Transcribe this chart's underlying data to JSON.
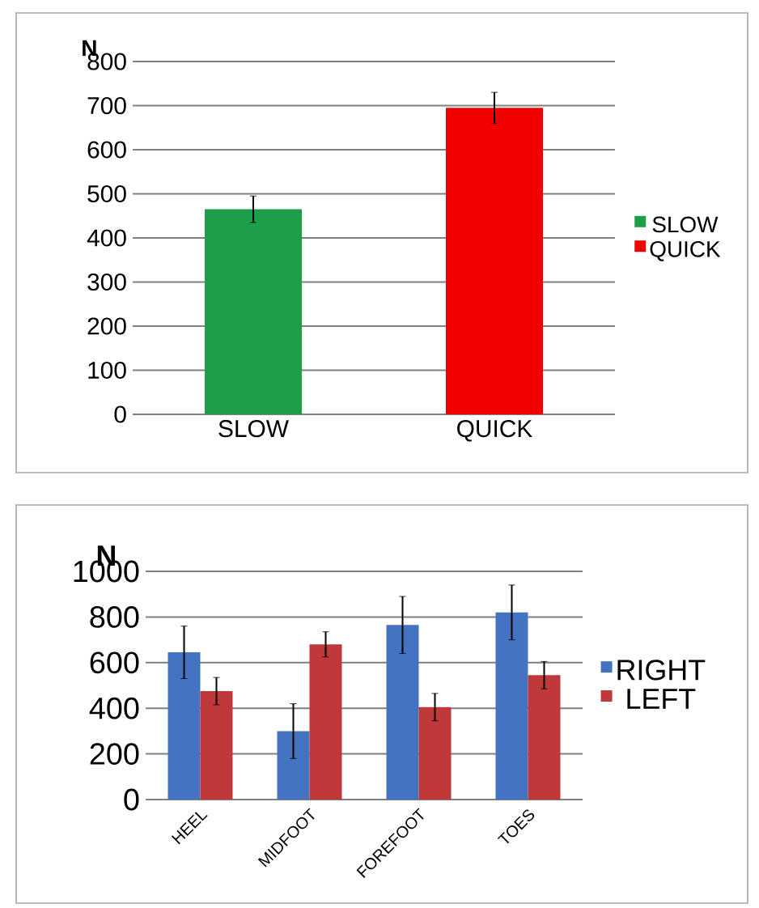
{
  "chart_data": [
    {
      "type": "bar",
      "ylabel": "N",
      "categories": [
        "SLOW",
        "QUICK"
      ],
      "series": [
        {
          "name": "SLOW",
          "color": "#1e9e48",
          "values": [
            465,
            null
          ],
          "errors": [
            30,
            null
          ]
        },
        {
          "name": "QUICK",
          "color": "#f20000",
          "values": [
            null,
            695
          ],
          "errors": [
            null,
            35
          ]
        }
      ],
      "ylim": [
        0,
        800
      ],
      "yticks": [
        0,
        100,
        200,
        300,
        400,
        500,
        600,
        700,
        800
      ],
      "grid": "y",
      "legend": "right"
    },
    {
      "type": "bar",
      "ylabel": "N",
      "categories": [
        "HEEL",
        "MIDFOOT",
        "FOREFOOT",
        "TOES"
      ],
      "series": [
        {
          "name": "RIGHT",
          "color": "#4473c1",
          "values": [
            645,
            300,
            765,
            820
          ],
          "errors": [
            115,
            120,
            125,
            120
          ]
        },
        {
          "name": "LEFT",
          "color": "#c0393a",
          "values": [
            475,
            680,
            405,
            545
          ],
          "errors": [
            60,
            55,
            60,
            60
          ]
        }
      ],
      "ylim": [
        0,
        1000
      ],
      "yticks": [
        0,
        200,
        400,
        600,
        800,
        1000
      ],
      "grid": "y",
      "legend": "right"
    }
  ]
}
